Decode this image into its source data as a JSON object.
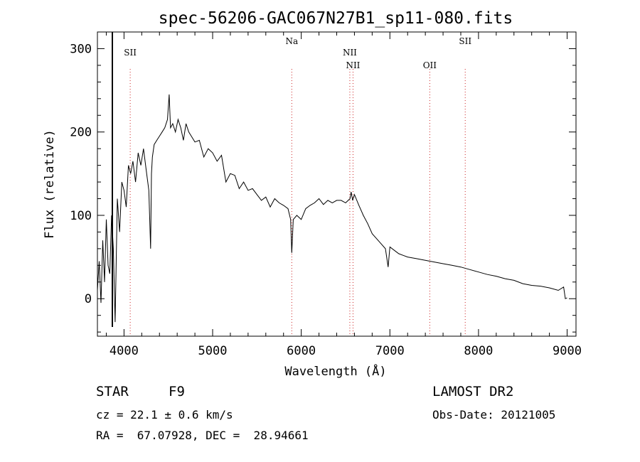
{
  "chart_data": {
    "type": "line",
    "title": "spec-56206-GAC067N27B1_sp11-080.fits",
    "xlabel": "Wavelength (Å)",
    "ylabel": "Flux (relative)",
    "xlim": [
      3700,
      9100
    ],
    "ylim": [
      -45,
      320
    ],
    "x_ticks": [
      4000,
      5000,
      6000,
      7000,
      8000,
      9000
    ],
    "y_ticks": [
      0,
      100,
      200,
      300
    ],
    "grid": false,
    "line_color": "#000000",
    "marker_color": "#cc2222",
    "spectral_lines": [
      {
        "label": "SII",
        "wavelength": 4070,
        "label_tier": 0
      },
      {
        "label": "Na",
        "wavelength": 5893,
        "label_tier": -1
      },
      {
        "label": "NII",
        "wavelength": 6548,
        "label_tier": 1
      },
      {
        "label": "NII",
        "wavelength": 6584,
        "label_tier": 2
      },
      {
        "label": "OII",
        "wavelength": 7450,
        "label_tier": 2
      },
      {
        "label": "SII",
        "wavelength": 7850,
        "label_tier": -1
      }
    ],
    "spectrum": {
      "x": [
        3700,
        3720,
        3740,
        3760,
        3780,
        3800,
        3820,
        3840,
        3860,
        3880,
        3900,
        3925,
        3950,
        3975,
        4000,
        4025,
        4050,
        4075,
        4100,
        4130,
        4160,
        4190,
        4220,
        4250,
        4280,
        4300,
        4310,
        4320,
        4340,
        4370,
        4400,
        4430,
        4460,
        4490,
        4510,
        4525,
        4550,
        4580,
        4610,
        4640,
        4670,
        4700,
        4730,
        4760,
        4800,
        4850,
        4900,
        4950,
        5000,
        5050,
        5100,
        5150,
        5200,
        5250,
        5300,
        5350,
        5400,
        5450,
        5500,
        5550,
        5600,
        5650,
        5700,
        5750,
        5800,
        5850,
        5880,
        5893,
        5910,
        5950,
        6000,
        6050,
        6100,
        6150,
        6200,
        6250,
        6300,
        6350,
        6400,
        6450,
        6500,
        6550,
        6563,
        6580,
        6600,
        6650,
        6700,
        6750,
        6800,
        6850,
        6900,
        6950,
        6980,
        7000,
        7050,
        7100,
        7150,
        7200,
        7300,
        7400,
        7500,
        7600,
        7700,
        7800,
        7900,
        8000,
        8100,
        8200,
        8300,
        8400,
        8500,
        8600,
        8700,
        8800,
        8900,
        8960,
        8980,
        9000
      ],
      "y": [
        10,
        45,
        -5,
        70,
        20,
        95,
        40,
        30,
        100,
        60,
        -28,
        120,
        80,
        140,
        130,
        110,
        160,
        150,
        165,
        140,
        175,
        160,
        180,
        155,
        130,
        60,
        150,
        170,
        185,
        190,
        195,
        200,
        205,
        215,
        245,
        205,
        210,
        200,
        215,
        205,
        190,
        210,
        200,
        195,
        188,
        190,
        170,
        180,
        175,
        165,
        172,
        140,
        150,
        148,
        132,
        140,
        130,
        132,
        125,
        118,
        122,
        110,
        120,
        115,
        112,
        108,
        95,
        55,
        95,
        100,
        95,
        108,
        112,
        115,
        120,
        113,
        118,
        115,
        118,
        118,
        115,
        120,
        128,
        118,
        125,
        112,
        100,
        90,
        78,
        72,
        66,
        60,
        38,
        62,
        58,
        54,
        52,
        50,
        48,
        46,
        44,
        42,
        40,
        38,
        35,
        32,
        29,
        27,
        24,
        22,
        18,
        16,
        15,
        13,
        10,
        14,
        0,
        1
      ]
    },
    "annotations": {
      "object_type": "STAR",
      "subclass": "F9",
      "survey": "LAMOST DR2",
      "cz": "cz = 22.1 ± 0.6 km/s",
      "obs_date": "Obs-Date: 20121005",
      "coords": "RA =  67.07928, DEC =  28.94661"
    }
  }
}
